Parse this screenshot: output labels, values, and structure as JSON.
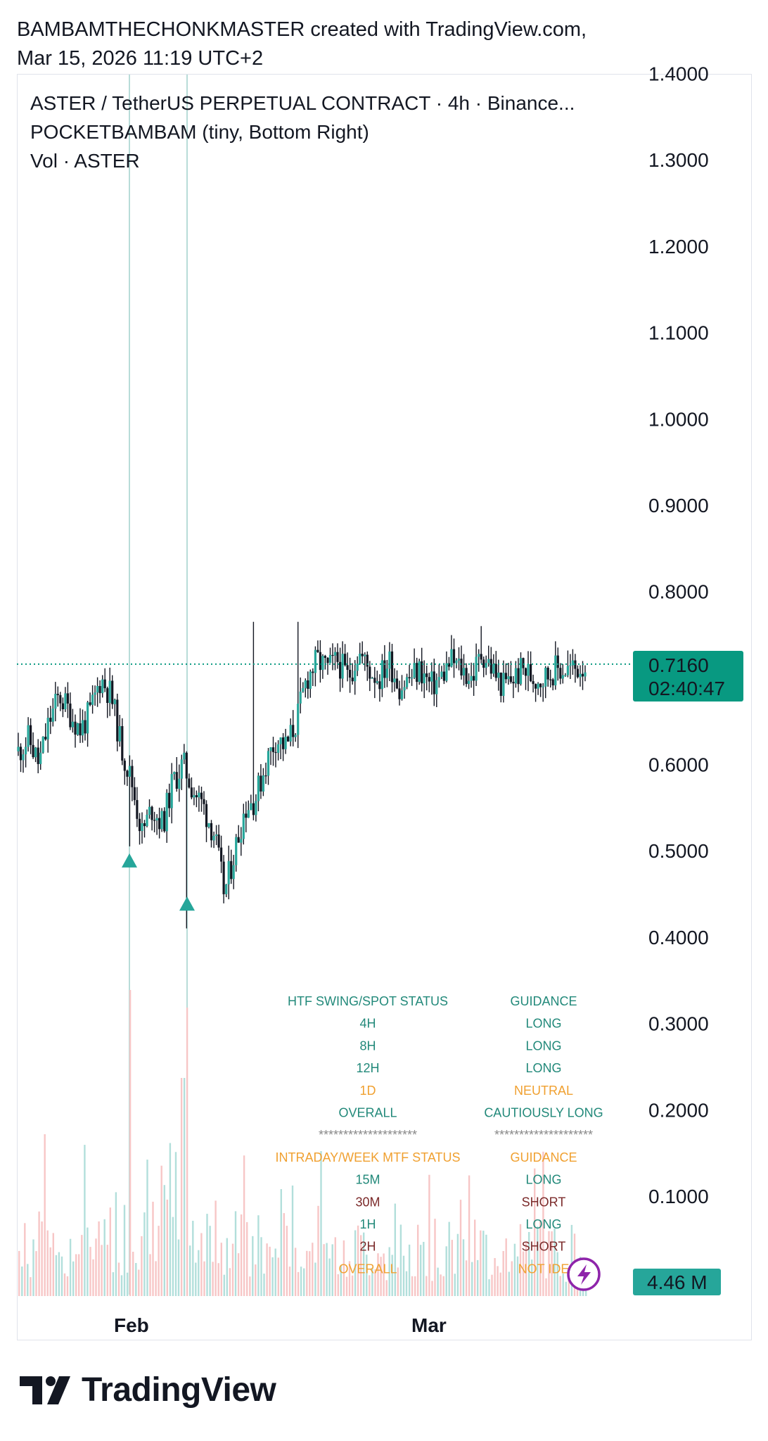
{
  "header": {
    "line1": "BAMBAMTHECHONKMASTER created with TradingView.com,",
    "line2": "Mar 15, 2026 11:19 UTC+2"
  },
  "legend": {
    "symbol": "ASTER / TetherUS PERPETUAL CONTRACT · 4h · Binance...",
    "indicator": "POCKETBAMBAM (tiny, Bottom Right)",
    "volume": "Vol · ASTER"
  },
  "price_badge": {
    "price": "0.7160",
    "countdown": "02:40:47",
    "color": "#089981"
  },
  "volume_badge": {
    "value": "4.46 M",
    "color": "#26a69a"
  },
  "colors": {
    "up": "#26a69a",
    "down": "#131722",
    "vol_up": "#b2dfdb",
    "vol_down": "#f7c6c6",
    "teal_text": "#22897a",
    "orange_text": "#f0a030",
    "maroon_text": "#7b2a2a",
    "badge_purple": "#8e24aa"
  },
  "status_table": {
    "rows": [
      {
        "left": "HTF SWING/SPOT STATUS",
        "right": "GUIDANCE",
        "lc": "teal",
        "rc": "teal"
      },
      {
        "left": "4H",
        "right": "LONG",
        "lc": "teal",
        "rc": "teal"
      },
      {
        "left": "8H",
        "right": "LONG",
        "lc": "teal",
        "rc": "teal"
      },
      {
        "left": "12H",
        "right": "LONG",
        "lc": "teal",
        "rc": "teal"
      },
      {
        "left": "1D",
        "right": "NEUTRAL",
        "lc": "orange",
        "rc": "orange"
      },
      {
        "left": "OVERALL",
        "right": "CAUTIOUSLY LONG",
        "lc": "teal",
        "rc": "teal"
      },
      {
        "left": "********************",
        "right": "********************",
        "lc": "gray",
        "rc": "gray"
      },
      {
        "left": "INTRADAY/WEEK MTF STATUS",
        "right": "GUIDANCE",
        "lc": "orange",
        "rc": "orange"
      },
      {
        "left": "15M",
        "right": "LONG",
        "lc": "teal",
        "rc": "teal"
      },
      {
        "left": "30M",
        "right": "SHORT",
        "lc": "maroon",
        "rc": "maroon"
      },
      {
        "left": "1H",
        "right": "LONG",
        "lc": "teal",
        "rc": "teal"
      },
      {
        "left": "2H",
        "right": "SHORT",
        "lc": "maroon",
        "rc": "maroon"
      },
      {
        "left": "OVERALL",
        "right": "NOT IDE",
        "lc": "orange",
        "rc": "orange"
      }
    ]
  },
  "branding": {
    "name": "TradingView"
  },
  "chart_data": {
    "type": "line",
    "chart_style": "candlestick",
    "timeframe": "4h",
    "x_labels": [
      "Feb",
      "Mar"
    ],
    "y_ticks": [
      "0.1000",
      "0.2000",
      "0.3000",
      "0.4000",
      "0.5000",
      "0.6000",
      "0.8000",
      "0.9000",
      "1.0000",
      "1.1000",
      "1.2000",
      "1.3000",
      "1.4000"
    ],
    "ylim": [
      0.1,
      1.4
    ],
    "last_price": 0.716,
    "close_series": [
      0.615,
      0.63,
      0.6,
      0.65,
      0.68,
      0.66,
      0.64,
      0.66,
      0.7,
      0.68,
      0.62,
      0.58,
      0.52,
      0.55,
      0.53,
      0.58,
      0.6,
      0.57,
      0.55,
      0.52,
      0.45,
      0.5,
      0.55,
      0.56,
      0.6,
      0.63,
      0.62,
      0.65,
      0.7,
      0.72,
      0.71,
      0.72,
      0.7,
      0.73,
      0.71,
      0.7,
      0.72,
      0.69,
      0.7,
      0.71,
      0.69,
      0.7,
      0.72,
      0.71,
      0.7,
      0.73,
      0.71,
      0.69,
      0.7,
      0.71,
      0.7,
      0.7,
      0.71,
      0.71,
      0.71,
      0.716
    ],
    "signals": [
      {
        "type": "buy",
        "price": 0.505
      },
      {
        "type": "buy",
        "price": 0.455
      }
    ]
  }
}
